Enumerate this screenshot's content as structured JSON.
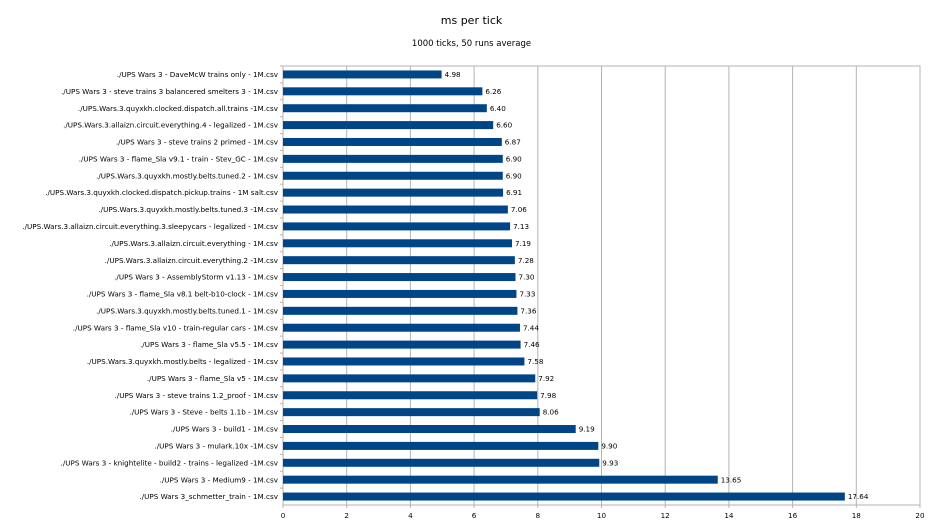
{
  "chart_data": {
    "type": "bar",
    "orientation": "horizontal",
    "title": "ms per tick",
    "subtitle": "1000 ticks, 50 runs average",
    "xlabel": "",
    "ylabel": "",
    "xlim": [
      0,
      20
    ],
    "x_ticks": [
      "0",
      "2",
      "4",
      "6",
      "8",
      "10",
      "12",
      "14",
      "16",
      "18",
      "20"
    ],
    "grid": "vertical",
    "legend": "none",
    "bar_color": "#004586",
    "categories": [
      "./UPS Wars 3 - DaveMcW trains only - 1M.csv",
      "./UPS Wars 3 - steve trains 3 balancered smelters 3 - 1M.csv",
      "./UPS.Wars.3.quyxkh.clocked.dispatch.all.trains -1M.csv",
      "./UPS.Wars.3.allaizn.circuit.everything.4 - legalized - 1M.csv",
      "./UPS Wars 3 - steve trains 2 primed - 1M.csv",
      "./UPS Wars 3 - flame_Sla v9.1 - train - Stev_GC - 1M.csv",
      "./UPS.Wars.3.quyxkh.mostly.belts.tuned.2 - 1M.csv",
      "./UPS.Wars.3.quyxkh.clocked.dispatch.pickup.trains - 1M salt.csv",
      "./UPS.Wars.3.quyxkh.mostly.belts.tuned.3 -1M.csv",
      "./UPS.Wars.3.allaizn.circuit.everything.3.sleepycars - legalized - 1M.csv",
      "./UPS.Wars.3.allaizn.circuit.everything - 1M.csv",
      "./UPS.Wars.3.allaizn.circuit.everything.2 -1M.csv",
      "./UPS Wars 3 - AssemblyStorm v1.13 - 1M.csv",
      "./UPS Wars 3 - flame_Sla v8.1 belt-b10-clock - 1M.csv",
      "./UPS.Wars.3.quyxkh.mostly.belts.tuned.1 - 1M.csv",
      "./UPS Wars 3 - flame_Sla v10 - train-regular cars - 1M.csv",
      "./UPS Wars 3 - flame_Sla v5.5 - 1M.csv",
      "./UPS.Wars.3.quyxkh.mostly.belts - legalized - 1M.csv",
      "./UPS Wars 3 - flame_Sla v5 - 1M.csv",
      "./UPS Wars 3 - steve trains 1.2_proof - 1M.csv",
      "./UPS Wars 3 - Steve - belts 1.1b - 1M.csv",
      "./UPS Wars 3 - build1 - 1M.csv",
      "./UPS Wars 3 - mulark.10x -1M.csv",
      "./UPS Wars 3 - knightelite - build2 - trains - legalized -1M.csv",
      "./UPS Wars 3 - Medium9 - 1M.csv",
      "./UPS Wars 3_schmetter_train - 1M.csv"
    ],
    "values": [
      4.98,
      6.26,
      6.4,
      6.6,
      6.87,
      6.9,
      6.9,
      6.91,
      7.06,
      7.13,
      7.19,
      7.28,
      7.3,
      7.33,
      7.36,
      7.44,
      7.46,
      7.58,
      7.92,
      7.98,
      8.06,
      9.19,
      9.9,
      9.93,
      13.65,
      17.64
    ],
    "value_labels": [
      "4.98",
      "6.26",
      "6.40",
      "6.60",
      "6.87",
      "6.90",
      "6.90",
      "6.91",
      "7.06",
      "7.13",
      "7.19",
      "7.28",
      "7.30",
      "7.33",
      "7.36",
      "7.44",
      "7.46",
      "7.58",
      "7.92",
      "7.98",
      "8.06",
      "9.19",
      "9.90",
      "9.93",
      "13.65",
      "17.64"
    ]
  }
}
